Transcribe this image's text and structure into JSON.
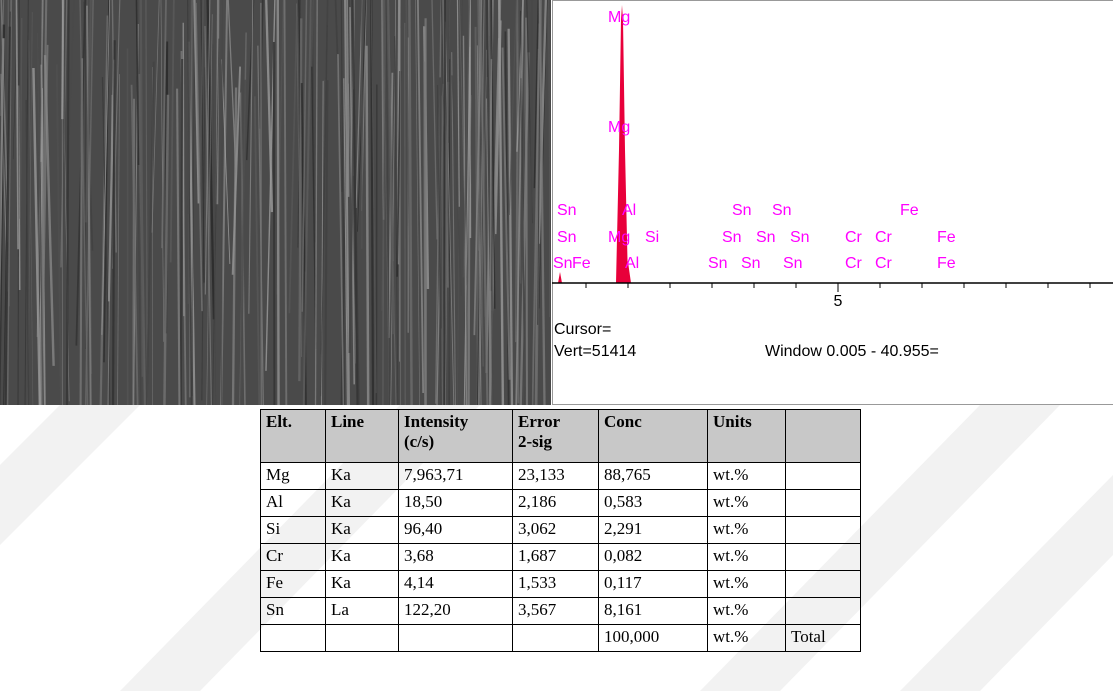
{
  "spectrum": {
    "peak_labels": [
      "Mg",
      "Mg",
      "Sn",
      "Al",
      "Sn",
      "Sn",
      "Fe",
      "Sn",
      "Mg",
      "Si",
      "Sn",
      "Sn",
      "Sn",
      "Cr",
      "Cr",
      "Fe",
      "Sn",
      "Fe",
      "Al",
      "Sn",
      "Sn",
      "Sn",
      "Cr",
      "Cr",
      "Fe"
    ],
    "axis_label": "5",
    "cursor": "Cursor=",
    "vert": "Vert=51414",
    "window": "Window 0.005 - 40.955="
  },
  "table": {
    "header": [
      [
        "Elt."
      ],
      [
        "Line"
      ],
      [
        "Intensity",
        "(c/s)"
      ],
      [
        "Error",
        "2-sig"
      ],
      [
        "Conc"
      ],
      [
        "Units"
      ],
      null
    ],
    "rows": [
      [
        "Mg",
        "Ka",
        "7,963,71",
        "23,133",
        "88,765",
        "wt.%",
        null
      ],
      [
        "Al",
        "Ka",
        "18,50",
        "2,186",
        "0,583",
        "wt.%",
        null
      ],
      [
        "Si",
        "Ka",
        "96,40",
        "3,062",
        "2,291",
        "wt.%",
        null
      ],
      [
        "Cr",
        "Ka",
        "3,68",
        "1,687",
        "0,082",
        "wt.%",
        null
      ],
      [
        "Fe",
        "Ka",
        "4,14",
        "1,533",
        "0,117",
        "wt.%",
        null
      ],
      [
        "Sn",
        "La",
        "122,20",
        "3,567",
        "8,161",
        "wt.%",
        null
      ],
      [
        null,
        null,
        null,
        null,
        "100,000",
        "wt.%",
        "Total"
      ]
    ]
  }
}
